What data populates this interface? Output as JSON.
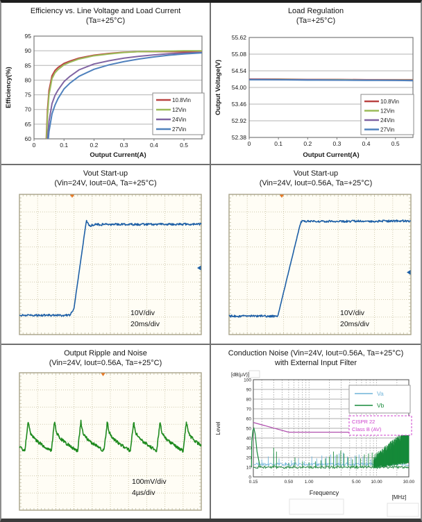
{
  "chart_data": [
    {
      "id": "efficiency",
      "type": "line",
      "title": "Efficiency vs. Line Voltage and Load Current",
      "subtitle": "(Ta=+25°C)",
      "xlabel": "Output Current(A)",
      "ylabel": "Efficiency(%)",
      "xlim": [
        0,
        0.56
      ],
      "ylim": [
        60,
        95
      ],
      "xticks": [
        0,
        0.1,
        0.2,
        0.3,
        0.4,
        0.5
      ],
      "xtick_labels": [
        "0",
        "0.1",
        "0.2",
        "0.3",
        "0.4",
        "0.5"
      ],
      "yticks": [
        60,
        65,
        70,
        75,
        80,
        85,
        90,
        95
      ],
      "ytick_labels": [
        "60",
        "65",
        "70",
        "75",
        "80",
        "85",
        "90",
        "95"
      ],
      "grid": "horizontal",
      "legend_position": "inside-right",
      "x": [
        0.04,
        0.045,
        0.05,
        0.06,
        0.07,
        0.08,
        0.1,
        0.12,
        0.15,
        0.2,
        0.25,
        0.3,
        0.35,
        0.4,
        0.45,
        0.5,
        0.56
      ],
      "series": [
        {
          "name": "10.8Vin",
          "color": "#b94442",
          "values": [
            58,
            70,
            76.5,
            81.5,
            83.3,
            84.3,
            85.7,
            86.5,
            87.5,
            88.5,
            89.1,
            89.5,
            89.7,
            89.7,
            89.7,
            89.6,
            89.5
          ]
        },
        {
          "name": "12Vin",
          "color": "#9bbb59",
          "values": [
            56,
            68,
            75,
            80.5,
            82.5,
            83.6,
            85.2,
            86.1,
            87.2,
            88.3,
            88.9,
            89.4,
            89.7,
            89.8,
            89.9,
            90,
            90
          ]
        },
        {
          "name": "24Vin",
          "color": "#8064a2",
          "values": [
            52,
            60,
            66,
            72,
            74.8,
            76.6,
            79.5,
            81.3,
            83.5,
            85.5,
            86.6,
            87.5,
            88.1,
            88.6,
            89,
            89.2,
            89.4
          ]
        },
        {
          "name": "27Vin",
          "color": "#4f81bd",
          "values": [
            50,
            57,
            62.5,
            68.5,
            71.5,
            73.7,
            77,
            79,
            81.3,
            83.7,
            85.2,
            86.3,
            87.2,
            87.9,
            88.5,
            88.9,
            89.3
          ]
        }
      ]
    },
    {
      "id": "load-regulation",
      "type": "line",
      "title": "Load Regulation",
      "subtitle": "(Ta=+25°C)",
      "xlabel": "Output Current(A)",
      "ylabel": "Output Voltage(V)",
      "xlim": [
        0,
        0.56
      ],
      "ylim": [
        52.38,
        55.62
      ],
      "xticks": [
        0,
        0.1,
        0.2,
        0.3,
        0.4,
        0.5
      ],
      "xtick_labels": [
        "0",
        "0.1",
        "0.2",
        "0.3",
        "0.4",
        "0.5"
      ],
      "yticks": [
        52.38,
        52.92,
        53.46,
        54.0,
        54.54,
        55.08,
        55.62
      ],
      "ytick_labels": [
        "52.38",
        "52.92",
        "53.46",
        "54.00",
        "54.54",
        "55.08",
        "55.62"
      ],
      "grid": "horizontal",
      "legend_position": "inside-right",
      "x": [
        0,
        0.1,
        0.2,
        0.3,
        0.4,
        0.5,
        0.56
      ],
      "series": [
        {
          "name": "10.8Vin",
          "color": "#b94442",
          "values": [
            54.27,
            54.27,
            54.26,
            54.26,
            54.25,
            54.25,
            54.25
          ]
        },
        {
          "name": "12Vin",
          "color": "#9bbb59",
          "values": [
            54.26,
            54.26,
            54.25,
            54.25,
            54.24,
            54.24,
            54.24
          ]
        },
        {
          "name": "24Vin",
          "color": "#8064a2",
          "values": [
            54.26,
            54.25,
            54.25,
            54.24,
            54.24,
            54.23,
            54.23
          ]
        },
        {
          "name": "27Vin",
          "color": "#4f81bd",
          "values": [
            54.25,
            54.25,
            54.24,
            54.24,
            54.23,
            54.23,
            54.22
          ]
        }
      ]
    },
    {
      "id": "vout-startup-noload",
      "type": "scope",
      "title": "Vout Start-up",
      "subtitle": "(Vin=24V, Iout=0A, Ta=+25°C)",
      "vdiv": "10V/div",
      "tdiv": "20ms/div",
      "divs": [
        10,
        8
      ],
      "trace_color": "#1d5fa6",
      "trace_points": [
        [
          0,
          6.9
        ],
        [
          2.78,
          6.9
        ],
        [
          3.0,
          6.5
        ],
        [
          3.68,
          1.5
        ],
        [
          3.84,
          1.8
        ],
        [
          4.2,
          1.72
        ],
        [
          10,
          1.7
        ]
      ],
      "jitter": 0.06,
      "trigger_x": 2.9,
      "marker_y": 4.2
    },
    {
      "id": "vout-startup-fullload",
      "type": "scope",
      "title": "Vout Start-up",
      "subtitle": "(Vin=24V, Iout=0.56A, Ta=+25°C)",
      "vdiv": "10V/div",
      "tdiv": "20ms/div",
      "divs": [
        10,
        8
      ],
      "trace_color": "#1d5fa6",
      "trace_points": [
        [
          0,
          6.95
        ],
        [
          2.68,
          6.95
        ],
        [
          3.95,
          1.55
        ],
        [
          10,
          1.52
        ]
      ],
      "jitter": 0.06,
      "trigger_x": 2.9,
      "marker_y": 4.45
    },
    {
      "id": "output-ripple-noise",
      "type": "scope",
      "title": "Output Ripple and Noise",
      "subtitle": "(Vin=24V, Iout=0.56A, Ta=+25°C)",
      "vdiv": "100mV/div",
      "tdiv": "4µs/div",
      "divs": [
        10,
        8
      ],
      "trace_color": "#1e8a1e",
      "ripple": {
        "period": 1.45,
        "trough_x": 0.3,
        "shape": [
          [
            0,
            4.55
          ],
          [
            0.18,
            2.85
          ],
          [
            0.28,
            3.45
          ],
          [
            0.42,
            3.72
          ],
          [
            0.58,
            3.9
          ],
          [
            0.75,
            4.05
          ],
          [
            0.95,
            4.2
          ],
          [
            1.15,
            4.35
          ],
          [
            1.3,
            4.45
          ],
          [
            1.45,
            4.55
          ]
        ],
        "jitter": 0.09
      },
      "trigger_x": 4.6
    },
    {
      "id": "conduction-noise",
      "type": "spectrum",
      "title": "Conduction Noise (Vin=24V, Iout=0.56A, Ta=+25°C)",
      "subtitle": "with External Input Filter",
      "yunits": "[dB(µV)]",
      "ylabel": "Level",
      "xlabel": "Frequency",
      "xunits": "[MHz]",
      "xlim": [
        0.15,
        30
      ],
      "ylim": [
        0,
        100
      ],
      "xscale": "log",
      "yticks": [
        0,
        10,
        20,
        30,
        40,
        50,
        60,
        70,
        80,
        90,
        100
      ],
      "xticks": [
        0.15,
        0.5,
        1,
        5,
        10,
        30
      ],
      "xtick_labels": [
        "0.15",
        "0.50",
        "1.00",
        "5.00",
        "10.00",
        "30.00"
      ],
      "limit": {
        "label_line1": "CISPR 22",
        "label_line2": "Class B (AV)",
        "color": "#b04fae",
        "text_color": "#cc3fcc",
        "points": [
          [
            0.15,
            56
          ],
          [
            0.5,
            46
          ],
          [
            5,
            46
          ],
          [
            5.001,
            50
          ],
          [
            30,
            50
          ]
        ]
      },
      "series": [
        {
          "name": "Va",
          "color": "#6fb3d9",
          "floor": 11.5,
          "spikes": [
            [
              0.18,
              15
            ],
            [
              0.2,
              18
            ],
            [
              0.25,
              21
            ],
            [
              0.3,
              24
            ],
            [
              0.36,
              19
            ],
            [
              0.45,
              15
            ],
            [
              0.55,
              17
            ],
            [
              0.7,
              19
            ],
            [
              0.85,
              16
            ],
            [
              1.1,
              21
            ],
            [
              1.3,
              19
            ],
            [
              1.55,
              22
            ],
            [
              1.8,
              21
            ],
            [
              2.1,
              23
            ],
            [
              2.45,
              22
            ],
            [
              2.8,
              24
            ],
            [
              3.2,
              25
            ],
            [
              3.7,
              21
            ],
            [
              4.2,
              20
            ],
            [
              4.8,
              22
            ],
            [
              5.5,
              23
            ],
            [
              6.3,
              21
            ],
            [
              7.2,
              20
            ],
            [
              8.2,
              18
            ],
            [
              9.5,
              20
            ],
            [
              11,
              22
            ],
            [
              13,
              24
            ]
          ]
        },
        {
          "name": "Vb",
          "color": "#178a3a",
          "floor": 10,
          "hump": [
            [
              0.142,
              36
            ],
            [
              0.148,
              48
            ],
            [
              0.153,
              50
            ],
            [
              0.16,
              44
            ],
            [
              0.17,
              26
            ],
            [
              0.185,
              13
            ]
          ],
          "spikes": [
            [
              0.3,
              30
            ],
            [
              0.33,
              26
            ],
            [
              0.5,
              14
            ],
            [
              0.62,
              20
            ],
            [
              0.8,
              16
            ],
            [
              1.0,
              15
            ],
            [
              1.25,
              16
            ],
            [
              1.5,
              17
            ],
            [
              1.75,
              19
            ],
            [
              2.0,
              21
            ],
            [
              2.3,
              26
            ],
            [
              2.6,
              23
            ],
            [
              2.95,
              27
            ],
            [
              3.3,
              24
            ],
            [
              3.8,
              20
            ],
            [
              4.4,
              18
            ],
            [
              5.0,
              21
            ],
            [
              5.8,
              19
            ],
            [
              6.6,
              23
            ],
            [
              7.6,
              24
            ],
            [
              8.6,
              25
            ]
          ],
          "band": {
            "f0": 9,
            "f1": 30,
            "top0": 18,
            "top1": 47,
            "bot0": 10,
            "bot1": 15
          }
        }
      ]
    }
  ]
}
